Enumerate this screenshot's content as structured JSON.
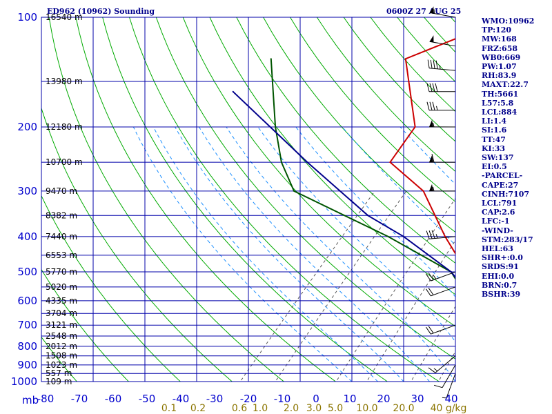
{
  "header": {
    "title": "ED962 (10962) Sounding",
    "timestamp": "0600Z 27 AUG 25"
  },
  "params": [
    "WMO:10962",
    "TP:120",
    "MW:168",
    "FRZ:658",
    "WB0:669",
    "PW:1.07",
    "RH:83.9",
    "MAXT:22.7",
    "TH:5661",
    "L57:5.8",
    "LCL:884",
    "LI:1.4",
    "SI:1.6",
    "TT:47",
    "KI:33",
    "SW:137",
    "EI:0.5",
    "-PARCEL-",
    "CAPE:27",
    "CINH:7107",
    "LCL:791",
    "CAP:2.6",
    "LFC:-1",
    "-WIND-",
    "STM:283/17",
    "HEL:63",
    "SHR+:0.0",
    "SRDS:91",
    "EHI:0.0",
    "BRN:0.7",
    "BSHR:39"
  ],
  "colors": {
    "isobar": "#0000aa",
    "isotherm": "#0000aa",
    "dry_adiabat": "#00aa00",
    "moist_adiabat": "#1e90ff",
    "mixing_ratio": "#555555",
    "temperature": "#cc0000",
    "dewpoint": "#005500",
    "parcel": "#00008b",
    "wind": "#000000"
  },
  "chart_data": {
    "type": "line",
    "title": "ED962 (10962) Sounding",
    "subtitle": "0600Z 27 AUG 25",
    "pressure_range_mb": [
      1000,
      100
    ],
    "temperature_range_c": [
      -80,
      0
    ],
    "pressure_ticks": [
      "100",
      "200",
      "300",
      "400",
      "500",
      "600",
      "700",
      "800",
      "900",
      "1000"
    ],
    "pressure_unit_label": "mb",
    "temperature_ticks": [
      "-80",
      "-70",
      "-60",
      "-50",
      "-40",
      "-30",
      "-20",
      "-10",
      "0",
      "10",
      "20",
      "30",
      "40"
    ],
    "mixing_ratio_labels": [
      "0.1",
      "0.2",
      "0.6",
      "1.0",
      "2.0",
      "3.0",
      "5.0",
      "10.0",
      "20.0",
      "40 g/kg"
    ],
    "height_labels": [
      {
        "p": 100,
        "text": "16540 m"
      },
      {
        "p": 150,
        "text": "13980 m"
      },
      {
        "p": 200,
        "text": "12180 m"
      },
      {
        "p": 250,
        "text": "10700 m"
      },
      {
        "p": 300,
        "text": "9470 m"
      },
      {
        "p": 350,
        "text": "8382 m"
      },
      {
        "p": 400,
        "text": "7440 m"
      },
      {
        "p": 450,
        "text": "6553 m"
      },
      {
        "p": 500,
        "text": "5770 m"
      },
      {
        "p": 550,
        "text": "5020 m"
      },
      {
        "p": 600,
        "text": "4335 m"
      },
      {
        "p": 650,
        "text": "3704 m"
      },
      {
        "p": 700,
        "text": "3121 m"
      },
      {
        "p": 750,
        "text": "2548 m"
      },
      {
        "p": 800,
        "text": "2012 m"
      },
      {
        "p": 850,
        "text": "1508 m"
      },
      {
        "p": 900,
        "text": "1023 m"
      },
      {
        "p": 950,
        "text": "557 m"
      },
      {
        "p": 1000,
        "text": "109 m"
      }
    ],
    "series": [
      {
        "key": "temperature",
        "points": [
          {
            "p": 100,
            "t": -60
          },
          {
            "p": 130,
            "t": -72
          },
          {
            "p": 200,
            "t": -57
          },
          {
            "p": 250,
            "t": -55
          },
          {
            "p": 300,
            "t": -43
          },
          {
            "p": 400,
            "t": -30
          },
          {
            "p": 500,
            "t": -19
          },
          {
            "p": 600,
            "t": -12
          },
          {
            "p": 700,
            "t": -5
          },
          {
            "p": 800,
            "t": 2
          },
          {
            "p": 850,
            "t": 6
          },
          {
            "p": 900,
            "t": 8
          }
        ]
      },
      {
        "key": "dewpoint",
        "points": [
          {
            "p": 130,
            "t": -98
          },
          {
            "p": 200,
            "t": -84
          },
          {
            "p": 250,
            "t": -76
          },
          {
            "p": 300,
            "t": -68
          },
          {
            "p": 400,
            "t": -41
          },
          {
            "p": 500,
            "t": -22
          },
          {
            "p": 600,
            "t": -13
          },
          {
            "p": 700,
            "t": -6
          },
          {
            "p": 800,
            "t": 0
          },
          {
            "p": 850,
            "t": 3
          },
          {
            "p": 900,
            "t": 7
          }
        ]
      },
      {
        "key": "parcel",
        "points": [
          {
            "p": 160,
            "t": -99
          },
          {
            "p": 250,
            "t": -71
          },
          {
            "p": 350,
            "t": -49
          },
          {
            "p": 400,
            "t": -38
          },
          {
            "p": 500,
            "t": -22
          },
          {
            "p": 600,
            "t": -12
          },
          {
            "p": 700,
            "t": -5
          },
          {
            "p": 800,
            "t": 1
          },
          {
            "p": 850,
            "t": 6
          },
          {
            "p": 900,
            "t": 11
          }
        ]
      }
    ],
    "wind_barbs": [
      {
        "p": 100,
        "dir": 280,
        "spd": 55
      },
      {
        "p": 120,
        "dir": 280,
        "spd": 50
      },
      {
        "p": 140,
        "dir": 275,
        "spd": 45
      },
      {
        "p": 160,
        "dir": 270,
        "spd": 40
      },
      {
        "p": 180,
        "dir": 270,
        "spd": 35
      },
      {
        "p": 200,
        "dir": 270,
        "spd": 55
      },
      {
        "p": 250,
        "dir": 270,
        "spd": 60
      },
      {
        "p": 300,
        "dir": 270,
        "spd": 55
      },
      {
        "p": 400,
        "dir": 265,
        "spd": 35
      },
      {
        "p": 500,
        "dir": 250,
        "spd": 25
      },
      {
        "p": 550,
        "dir": 250,
        "spd": 20
      },
      {
        "p": 700,
        "dir": 250,
        "spd": 20
      },
      {
        "p": 850,
        "dir": 230,
        "spd": 15
      },
      {
        "p": 900,
        "dir": 210,
        "spd": 10
      },
      {
        "p": 950,
        "dir": 200,
        "spd": 5
      }
    ]
  }
}
